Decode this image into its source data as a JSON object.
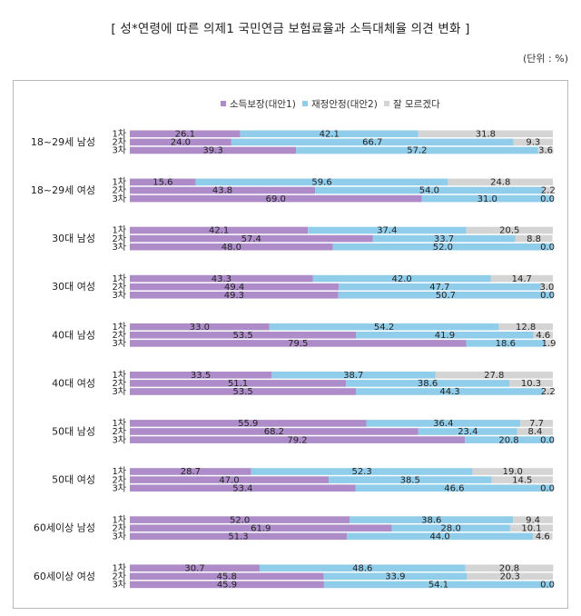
{
  "title": "[ 성*연령에 따른 의제1 국민연금 보험료율과 소득대체율 의견 변화 ]",
  "unit": "(단위 : %)",
  "chart_data": {
    "type": "bar",
    "orientation": "horizontal",
    "stacked": true,
    "percent_stacked": true,
    "legend": [
      {
        "name": "소득보장(대안1)",
        "color": "#ad8cc9"
      },
      {
        "name": "재정안정(대안2)",
        "color": "#8fcdeb"
      },
      {
        "name": "잘 모르겠다",
        "color": "#d4d4d4"
      }
    ],
    "legend_position": "top-center",
    "groups": [
      {
        "label": "18~29세 남성",
        "rounds": [
          {
            "round": "1차",
            "values": [
              "26.1",
              "42.1",
              "31.8"
            ]
          },
          {
            "round": "2차",
            "values": [
              "24.0",
              "66.7",
              "9.3"
            ]
          },
          {
            "round": "3차",
            "values": [
              "39.3",
              "57.2",
              "3.6"
            ]
          }
        ]
      },
      {
        "label": "18~29세 여성",
        "rounds": [
          {
            "round": "1차",
            "values": [
              "15.6",
              "59.6",
              "24.8"
            ]
          },
          {
            "round": "2차",
            "values": [
              "43.8",
              "54.0",
              "2.2"
            ]
          },
          {
            "round": "3차",
            "values": [
              "69.0",
              "31.0",
              "0.0"
            ]
          }
        ]
      },
      {
        "label": "30대 남성",
        "rounds": [
          {
            "round": "1차",
            "values": [
              "42.1",
              "37.4",
              "20.5"
            ]
          },
          {
            "round": "2차",
            "values": [
              "57.4",
              "33.7",
              "8.8"
            ]
          },
          {
            "round": "3차",
            "values": [
              "48.0",
              "52.0",
              "0.0"
            ]
          }
        ]
      },
      {
        "label": "30대 여성",
        "rounds": [
          {
            "round": "1차",
            "values": [
              "43.3",
              "42.0",
              "14.7"
            ]
          },
          {
            "round": "2차",
            "values": [
              "49.4",
              "47.7",
              "3.0"
            ]
          },
          {
            "round": "3차",
            "values": [
              "49.3",
              "50.7",
              "0.0"
            ]
          }
        ]
      },
      {
        "label": "40대 남성",
        "rounds": [
          {
            "round": "1차",
            "values": [
              "33.0",
              "54.2",
              "12.8"
            ]
          },
          {
            "round": "2차",
            "values": [
              "53.5",
              "41.9",
              "4.6"
            ]
          },
          {
            "round": "3차",
            "values": [
              "79.5",
              "18.6",
              "1.9"
            ]
          }
        ]
      },
      {
        "label": "40대 여성",
        "rounds": [
          {
            "round": "1차",
            "values": [
              "33.5",
              "38.7",
              "27.8"
            ]
          },
          {
            "round": "2차",
            "values": [
              "51.1",
              "38.6",
              "10.3"
            ]
          },
          {
            "round": "3차",
            "values": [
              "53.5",
              "44.3",
              "2.2"
            ]
          }
        ]
      },
      {
        "label": "50대 남성",
        "rounds": [
          {
            "round": "1차",
            "values": [
              "55.9",
              "36.4",
              "7.7"
            ]
          },
          {
            "round": "2차",
            "values": [
              "68.2",
              "23.4",
              "8.4"
            ]
          },
          {
            "round": "3차",
            "values": [
              "79.2",
              "20.8",
              "0.0"
            ]
          }
        ]
      },
      {
        "label": "50대 여성",
        "rounds": [
          {
            "round": "1차",
            "values": [
              "28.7",
              "52.3",
              "19.0"
            ]
          },
          {
            "round": "2차",
            "values": [
              "47.0",
              "38.5",
              "14.5"
            ]
          },
          {
            "round": "3차",
            "values": [
              "53.4",
              "46.6",
              "0.0"
            ]
          }
        ]
      },
      {
        "label": "60세이상 남성",
        "rounds": [
          {
            "round": "1차",
            "values": [
              "52.0",
              "38.6",
              "9.4"
            ]
          },
          {
            "round": "2차",
            "values": [
              "61.9",
              "28.0",
              "10.1"
            ]
          },
          {
            "round": "3차",
            "values": [
              "51.3",
              "44.0",
              "4.6"
            ]
          }
        ]
      },
      {
        "label": "60세이상 여성",
        "rounds": [
          {
            "round": "1차",
            "values": [
              "30.7",
              "48.6",
              "20.8"
            ]
          },
          {
            "round": "2차",
            "values": [
              "45.8",
              "33.9",
              "20.3"
            ]
          },
          {
            "round": "3차",
            "values": [
              "45.9",
              "54.1",
              "0.0"
            ]
          }
        ]
      }
    ]
  }
}
